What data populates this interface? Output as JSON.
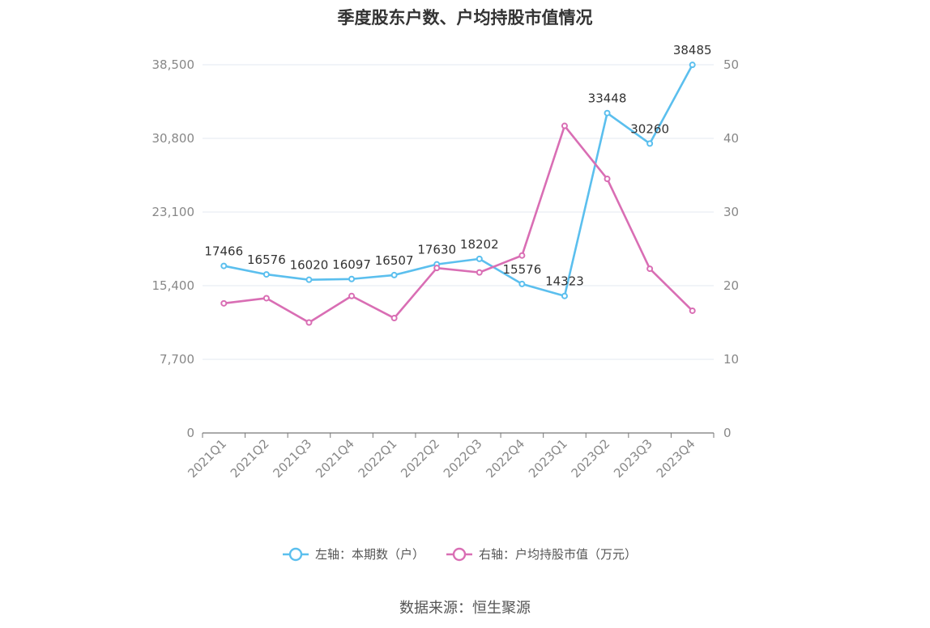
{
  "chart_data": {
    "type": "line",
    "title": "季度股东户数、户均持股市值情况",
    "categories": [
      "2021Q1",
      "2021Q2",
      "2021Q3",
      "2021Q4",
      "2022Q1",
      "2022Q2",
      "2022Q3",
      "2022Q4",
      "2023Q1",
      "2023Q2",
      "2023Q3",
      "2023Q4"
    ],
    "left_axis": {
      "ylim": [
        0,
        38500
      ],
      "ticks": [
        "0",
        "7,700",
        "15,400",
        "23,100",
        "30,800",
        "38,500"
      ],
      "tick_values": [
        0,
        7700,
        15400,
        23100,
        30800,
        38500
      ]
    },
    "right_axis": {
      "ylim": [
        0,
        50
      ],
      "ticks": [
        "0",
        "10",
        "20",
        "30",
        "40",
        "50"
      ],
      "tick_values": [
        0,
        10,
        20,
        30,
        40,
        50
      ]
    },
    "series": [
      {
        "name": "左轴：本期数（户）",
        "axis": "left",
        "color": "#5bbfee",
        "values": [
          17466,
          16576,
          16020,
          16097,
          16507,
          17630,
          18202,
          15576,
          14323,
          33448,
          30260,
          38485
        ],
        "labels": [
          "17466",
          "16576",
          "16020",
          "16097",
          "16507",
          "17630",
          "18202",
          "15576",
          "14323",
          "33448",
          "30260",
          "38485"
        ]
      },
      {
        "name": "右轴：户均持股市值（万元）",
        "axis": "right",
        "color": "#d96eb4",
        "values": [
          17.6,
          18.3,
          15.0,
          18.6,
          15.6,
          22.4,
          21.8,
          24.1,
          41.7,
          34.5,
          22.3,
          16.6
        ]
      }
    ],
    "grid": true,
    "legend_position": "bottom-center"
  },
  "footer": {
    "source": "数据来源：恒生聚源"
  }
}
